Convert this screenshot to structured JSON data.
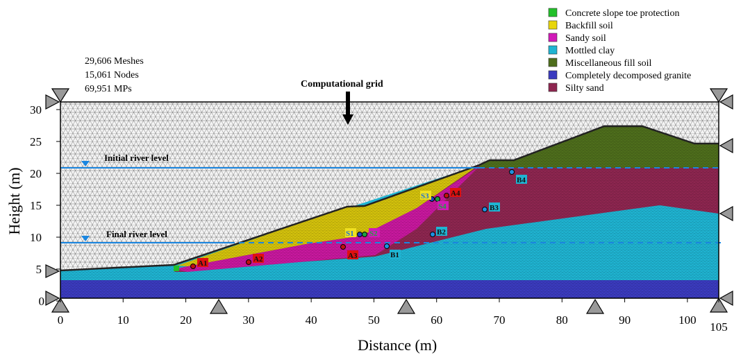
{
  "stats": [
    "29,606 Meshes",
    "15,061 Nodes",
    "69,951 MPs"
  ],
  "grid_label": "Computational grid",
  "initial_river_label": "Initial river level",
  "final_river_label": "Final river level",
  "legend": [
    {
      "label": "Concrete slope toe protection",
      "color": "#22c02a"
    },
    {
      "label": "Backfill soil",
      "color": "#e8d60c"
    },
    {
      "label": "Sandy soil",
      "color": "#d11ab8"
    },
    {
      "label": "Mottled clay",
      "color": "#1fb4d2"
    },
    {
      "label": "Miscellaneous fill soil",
      "color": "#4e6e1c"
    },
    {
      "label": "Completely decomposed granite",
      "color": "#3b3bbf"
    },
    {
      "label": "Silty sand",
      "color": "#8e2650"
    }
  ],
  "chart_data": {
    "type": "diagram",
    "xlabel": "Distance (m)",
    "ylabel": "Height (m)",
    "xticks": [
      "0",
      "10",
      "20",
      "30",
      "40",
      "50",
      "60",
      "70",
      "80",
      "90",
      "100",
      "105"
    ],
    "yticks": [
      "0",
      "5",
      "10",
      "15",
      "20",
      "25",
      "30"
    ],
    "xlim": [
      0,
      105
    ],
    "ylim": [
      0,
      31
    ]
  },
  "markers": [
    {
      "label": "A1",
      "group": "A"
    },
    {
      "label": "A2",
      "group": "A"
    },
    {
      "label": "A3",
      "group": "A"
    },
    {
      "label": "A4",
      "group": "A"
    },
    {
      "label": "B1",
      "group": "B"
    },
    {
      "label": "B2",
      "group": "B"
    },
    {
      "label": "B3",
      "group": "B"
    },
    {
      "label": "B4",
      "group": "B"
    },
    {
      "label": "S1",
      "group": "S1"
    },
    {
      "label": "S2",
      "group": "S2"
    },
    {
      "label": "S3",
      "group": "S1"
    },
    {
      "label": "S4",
      "group": "S2"
    }
  ]
}
